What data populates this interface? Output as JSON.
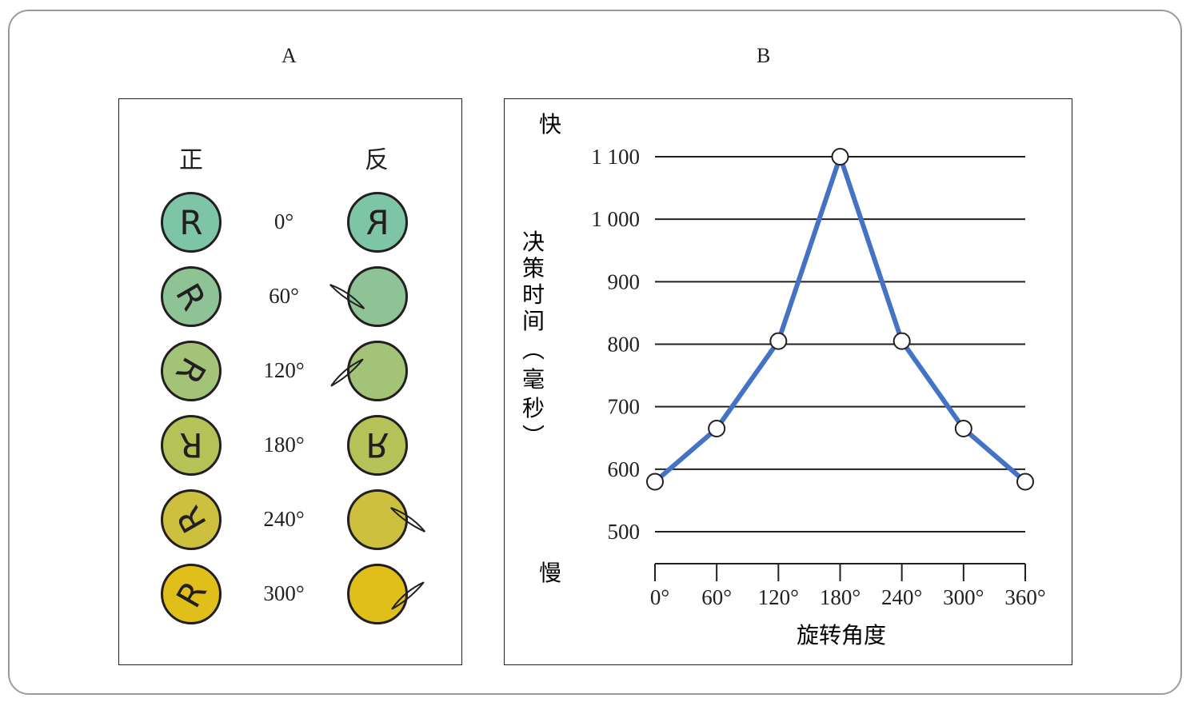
{
  "panel_labels": {
    "a": "A",
    "b": "B"
  },
  "panel_a": {
    "normal_header": "正",
    "mirror_header": "反",
    "letter": "R",
    "rows": [
      {
        "angle": "0°",
        "rotation": 0,
        "color": "#7ec4a7"
      },
      {
        "angle": "60°",
        "rotation": 60,
        "color": "#8ec495"
      },
      {
        "angle": "120°",
        "rotation": 120,
        "color": "#a3c478"
      },
      {
        "angle": "180°",
        "rotation": 180,
        "color": "#b5c257"
      },
      {
        "angle": "240°",
        "rotation": 240,
        "color": "#cdc03e"
      },
      {
        "angle": "300°",
        "rotation": 300,
        "color": "#e0bf1a"
      }
    ]
  },
  "chart_data": {
    "type": "line",
    "x": [
      0,
      60,
      120,
      180,
      240,
      300,
      360
    ],
    "x_tick_labels": [
      "0°",
      "60°",
      "120°",
      "180°",
      "240°",
      "300°",
      "360°"
    ],
    "y": [
      580,
      665,
      805,
      1100,
      805,
      665,
      580
    ],
    "y_ticks": [
      500,
      600,
      700,
      800,
      900,
      1000,
      1100
    ],
    "y_tick_labels": [
      "500",
      "600",
      "700",
      "800",
      "900",
      "1 000",
      "1 100"
    ],
    "ylim": [
      500,
      1100
    ],
    "xlim": [
      0,
      360
    ],
    "ylabel": "决策时间（毫秒）",
    "xlabel": "旋转角度",
    "y_top_annotation": "快",
    "y_bottom_annotation": "慢",
    "line_color": "#4472c4",
    "grid": "horizontal"
  }
}
